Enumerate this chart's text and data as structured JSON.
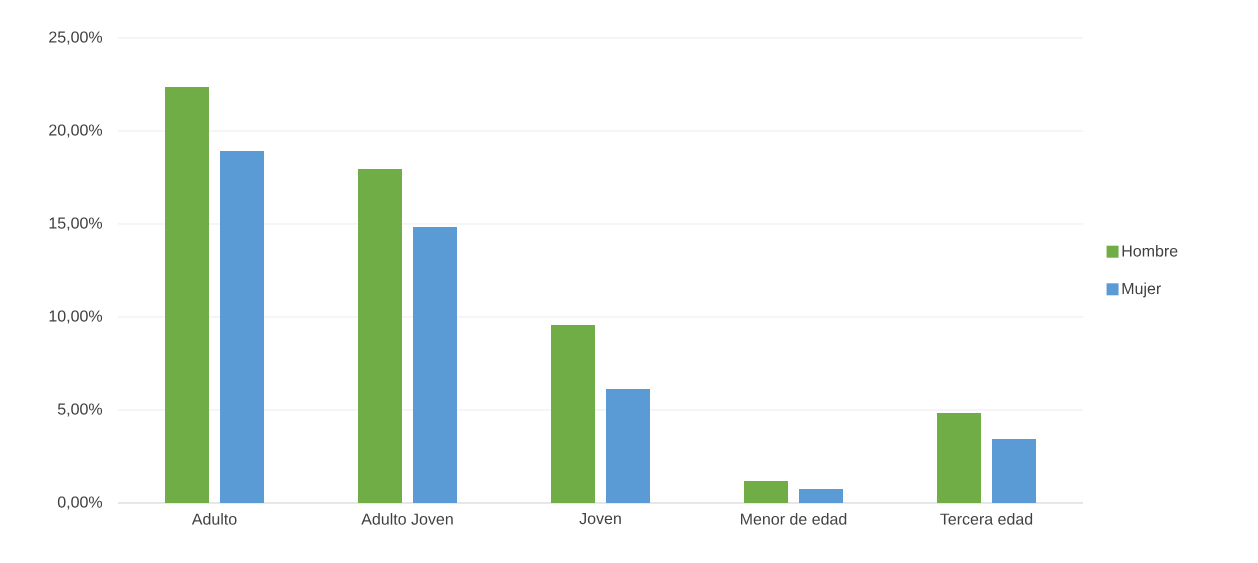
{
  "chart_data": {
    "type": "bar",
    "categories": [
      "Adulto",
      "Adulto Joven",
      "Joven",
      "Menor de edad",
      "Tercera edad"
    ],
    "series": [
      {
        "name": "Hombre",
        "color": "#70ad47",
        "values": [
          22.37,
          17.96,
          9.57,
          1.18,
          4.84
        ]
      },
      {
        "name": "Mujer",
        "color": "#5b9bd5",
        "values": [
          18.92,
          14.84,
          6.13,
          0.75,
          3.44
        ]
      }
    ],
    "ylim": [
      0,
      25
    ],
    "yticks": [
      {
        "value": 0,
        "label": "0,00%"
      },
      {
        "value": 5,
        "label": "5,00%"
      },
      {
        "value": 10,
        "label": "10,00%"
      },
      {
        "value": 15,
        "label": "15,00%"
      },
      {
        "value": 20,
        "label": "20,00%"
      },
      {
        "value": 25,
        "label": "25,00%"
      }
    ],
    "grid": "y",
    "legend": "right"
  }
}
